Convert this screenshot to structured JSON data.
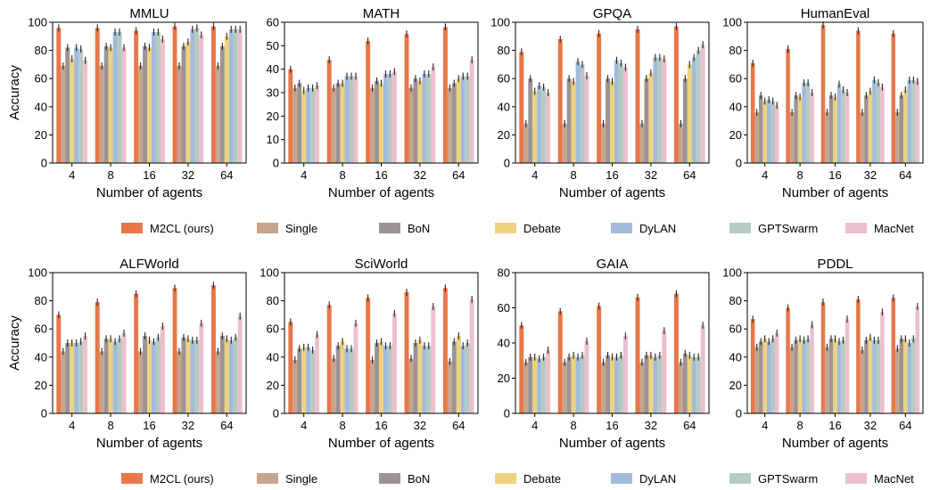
{
  "colors": {
    "M2CL (ours)": "#E8774A",
    "Single": "#C7A48C",
    "BoN": "#9A9499",
    "Debate": "#EFD27E",
    "DyLAN": "#A3BBDB",
    "GPTSwarm": "#B5CBC1",
    "MacNet": "#EBC0CB"
  },
  "legend_rows": [
    [
      "M2CL (ours)",
      "Single",
      "BoN",
      "Debate",
      "DyLAN",
      "GPTSwarm",
      "MacNet"
    ],
    [
      "M2CL (ours)",
      "Single",
      "BoN",
      "Debate",
      "DyLAN",
      "GPTSwarm",
      "MacNet"
    ]
  ],
  "chart_data": [
    {
      "type": "bar",
      "title": "MMLU",
      "xlabel": "Number of agents",
      "ylabel": "Accuracy",
      "categories": [
        "4",
        "8",
        "16",
        "32",
        "64"
      ],
      "ylim": [
        0,
        100
      ],
      "yticks": [
        0,
        20,
        40,
        60,
        80,
        100
      ],
      "series": [
        {
          "name": "M2CL (ours)",
          "values": [
            96,
            96,
            94,
            97,
            97
          ]
        },
        {
          "name": "Single",
          "values": [
            69,
            69,
            69,
            69,
            69
          ]
        },
        {
          "name": "BoN",
          "values": [
            82,
            83,
            83,
            83,
            83
          ]
        },
        {
          "name": "Debate",
          "values": [
            74,
            82,
            82,
            86,
            90
          ]
        },
        {
          "name": "DyLAN",
          "values": [
            82,
            93,
            93,
            95,
            95
          ]
        },
        {
          "name": "GPTSwarm",
          "values": [
            81,
            93,
            93,
            96,
            95
          ]
        },
        {
          "name": "MacNet",
          "values": [
            73,
            82,
            88,
            91,
            95
          ]
        }
      ]
    },
    {
      "type": "bar",
      "title": "MATH",
      "xlabel": "Number of agents",
      "ylabel": "",
      "categories": [
        "4",
        "8",
        "16",
        "32",
        "64"
      ],
      "ylim": [
        0,
        60
      ],
      "yticks": [
        0,
        10,
        20,
        30,
        40,
        50,
        60
      ],
      "series": [
        {
          "name": "M2CL (ours)",
          "values": [
            40,
            44,
            52,
            55,
            58
          ]
        },
        {
          "name": "Single",
          "values": [
            32,
            32,
            32,
            32,
            32
          ]
        },
        {
          "name": "BoN",
          "values": [
            34,
            34,
            35,
            36,
            34
          ]
        },
        {
          "name": "Debate",
          "values": [
            31,
            34,
            34,
            35,
            36
          ]
        },
        {
          "name": "DyLAN",
          "values": [
            32,
            37,
            38,
            38,
            37
          ]
        },
        {
          "name": "GPTSwarm",
          "values": [
            32,
            37,
            38,
            38,
            37
          ]
        },
        {
          "name": "MacNet",
          "values": [
            33,
            37,
            39,
            41,
            44
          ]
        }
      ]
    },
    {
      "type": "bar",
      "title": "GPQA",
      "xlabel": "Number of agents",
      "ylabel": "",
      "categories": [
        "4",
        "8",
        "16",
        "32",
        "64"
      ],
      "ylim": [
        0,
        100
      ],
      "yticks": [
        0,
        20,
        40,
        60,
        80,
        100
      ],
      "series": [
        {
          "name": "M2CL (ours)",
          "values": [
            79,
            88,
            92,
            95,
            97
          ]
        },
        {
          "name": "Single",
          "values": [
            28,
            28,
            28,
            28,
            28
          ]
        },
        {
          "name": "BoN",
          "values": [
            60,
            60,
            60,
            60,
            60
          ]
        },
        {
          "name": "Debate",
          "values": [
            51,
            58,
            58,
            64,
            70
          ]
        },
        {
          "name": "DyLAN",
          "values": [
            55,
            72,
            73,
            75,
            75
          ]
        },
        {
          "name": "GPTSwarm",
          "values": [
            54,
            70,
            71,
            75,
            80
          ]
        },
        {
          "name": "MacNet",
          "values": [
            50,
            62,
            68,
            74,
            84
          ]
        }
      ]
    },
    {
      "type": "bar",
      "title": "HumanEval",
      "xlabel": "Number of agents",
      "ylabel": "",
      "categories": [
        "4",
        "8",
        "16",
        "32",
        "64"
      ],
      "ylim": [
        0,
        100
      ],
      "yticks": [
        0,
        20,
        40,
        60,
        80,
        100
      ],
      "series": [
        {
          "name": "M2CL (ours)",
          "values": [
            71,
            81,
            98,
            94,
            92
          ]
        },
        {
          "name": "Single",
          "values": [
            36,
            36,
            36,
            36,
            36
          ]
        },
        {
          "name": "BoN",
          "values": [
            48,
            48,
            48,
            48,
            48
          ]
        },
        {
          "name": "Debate",
          "values": [
            44,
            47,
            47,
            51,
            52
          ]
        },
        {
          "name": "DyLAN",
          "values": [
            45,
            57,
            56,
            59,
            59
          ]
        },
        {
          "name": "GPTSwarm",
          "values": [
            44,
            57,
            52,
            57,
            59
          ]
        },
        {
          "name": "MacNet",
          "values": [
            41,
            50,
            50,
            54,
            58
          ]
        }
      ]
    },
    {
      "type": "bar",
      "title": "ALFWorld",
      "xlabel": "Number of agents",
      "ylabel": "Accuracy",
      "categories": [
        "4",
        "8",
        "16",
        "32",
        "64"
      ],
      "ylim": [
        0,
        100
      ],
      "yticks": [
        0,
        20,
        40,
        60,
        80,
        100
      ],
      "series": [
        {
          "name": "M2CL (ours)",
          "values": [
            70,
            79,
            85,
            89,
            91
          ]
        },
        {
          "name": "Single",
          "values": [
            44,
            44,
            44,
            44,
            44
          ]
        },
        {
          "name": "BoN",
          "values": [
            50,
            53,
            55,
            54,
            55
          ]
        },
        {
          "name": "Debate",
          "values": [
            50,
            53,
            52,
            53,
            53
          ]
        },
        {
          "name": "DyLAN",
          "values": [
            50,
            51,
            51,
            52,
            52
          ]
        },
        {
          "name": "GPTSwarm",
          "values": [
            51,
            53,
            54,
            52,
            54
          ]
        },
        {
          "name": "MacNet",
          "values": [
            55,
            57,
            62,
            64,
            69
          ]
        }
      ]
    },
    {
      "type": "bar",
      "title": "SciWorld",
      "xlabel": "Number of agents",
      "ylabel": "",
      "categories": [
        "4",
        "8",
        "16",
        "32",
        "64"
      ],
      "ylim": [
        0,
        100
      ],
      "yticks": [
        0,
        20,
        40,
        60,
        80,
        100
      ],
      "series": [
        {
          "name": "M2CL (ours)",
          "values": [
            65,
            77,
            82,
            86,
            89
          ]
        },
        {
          "name": "Single",
          "values": [
            38,
            39,
            38,
            39,
            37
          ]
        },
        {
          "name": "BoN",
          "values": [
            46,
            48,
            50,
            50,
            51
          ]
        },
        {
          "name": "Debate",
          "values": [
            47,
            51,
            51,
            52,
            55
          ]
        },
        {
          "name": "DyLAN",
          "values": [
            47,
            46,
            48,
            48,
            48
          ]
        },
        {
          "name": "GPTSwarm",
          "values": [
            45,
            46,
            48,
            48,
            50
          ]
        },
        {
          "name": "MacNet",
          "values": [
            56,
            64,
            71,
            76,
            81
          ]
        }
      ]
    },
    {
      "type": "bar",
      "title": "GAIA",
      "xlabel": "Number of agents",
      "ylabel": "",
      "categories": [
        "4",
        "8",
        "16",
        "32",
        "64"
      ],
      "ylim": [
        0,
        80
      ],
      "yticks": [
        0,
        20,
        40,
        60,
        80
      ],
      "series": [
        {
          "name": "M2CL (ours)",
          "values": [
            50,
            58,
            61,
            66,
            68
          ]
        },
        {
          "name": "Single",
          "values": [
            29,
            29,
            29,
            29,
            29
          ]
        },
        {
          "name": "BoN",
          "values": [
            32,
            32,
            33,
            33,
            34
          ]
        },
        {
          "name": "Debate",
          "values": [
            32,
            33,
            32,
            33,
            33
          ]
        },
        {
          "name": "DyLAN",
          "values": [
            31,
            32,
            32,
            32,
            32
          ]
        },
        {
          "name": "GPTSwarm",
          "values": [
            32,
            33,
            33,
            33,
            32
          ]
        },
        {
          "name": "MacNet",
          "values": [
            36,
            41,
            44,
            47,
            50
          ]
        }
      ]
    },
    {
      "type": "bar",
      "title": "PDDL",
      "xlabel": "Number of agents",
      "ylabel": "",
      "categories": [
        "4",
        "8",
        "16",
        "32",
        "64"
      ],
      "ylim": [
        0,
        100
      ],
      "yticks": [
        0,
        20,
        40,
        60,
        80,
        100
      ],
      "series": [
        {
          "name": "M2CL (ours)",
          "values": [
            67,
            75,
            79,
            81,
            82
          ]
        },
        {
          "name": "Single",
          "values": [
            47,
            47,
            47,
            45,
            46
          ]
        },
        {
          "name": "BoN",
          "values": [
            51,
            52,
            53,
            52,
            53
          ]
        },
        {
          "name": "Debate",
          "values": [
            53,
            53,
            53,
            54,
            53
          ]
        },
        {
          "name": "DyLAN",
          "values": [
            51,
            52,
            51,
            52,
            50
          ]
        },
        {
          "name": "GPTSwarm",
          "values": [
            53,
            53,
            52,
            52,
            53
          ]
        },
        {
          "name": "MacNet",
          "values": [
            57,
            63,
            67,
            72,
            76
          ]
        }
      ]
    }
  ]
}
